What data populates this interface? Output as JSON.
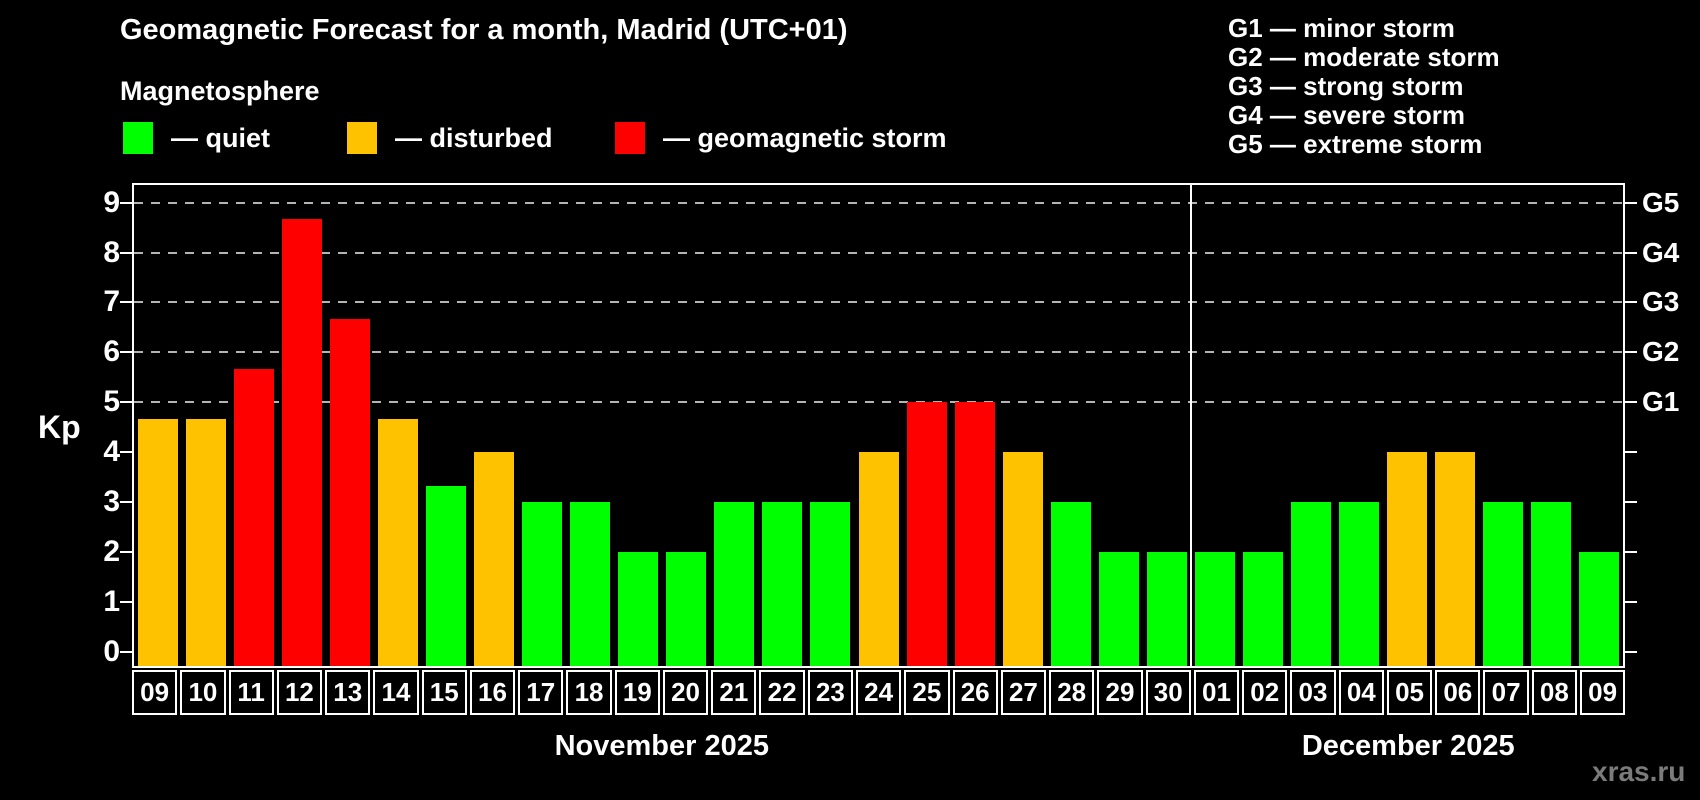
{
  "title": "Geomagnetic Forecast for a month, Madrid (UTC+01)",
  "subtitle": "Magnetosphere",
  "legend": {
    "items": [
      {
        "key": "quiet",
        "label": "— quiet"
      },
      {
        "key": "disturbed",
        "label": "— disturbed"
      },
      {
        "key": "storm",
        "label": "— geomagnetic storm"
      }
    ]
  },
  "g_scale_legend": [
    {
      "label": "G1 — minor storm"
    },
    {
      "label": "G2 — moderate storm"
    },
    {
      "label": "G3 — strong storm"
    },
    {
      "label": "G4 — severe storm"
    },
    {
      "label": "G5 — extreme storm"
    }
  ],
  "watermark": "xras.ru",
  "chart_data": {
    "type": "bar",
    "title": "Geomagnetic Forecast for a month, Madrid (UTC+01)",
    "ylabel": "Kp",
    "ylim": [
      0,
      9.4
    ],
    "grid": "dashed horizontal lines at Kp 5-9 only",
    "legend_position": "top-left",
    "yticks": [
      "0",
      "1",
      "2",
      "3",
      "4",
      "5",
      "6",
      "7",
      "8",
      "9"
    ],
    "g_levels": [
      {
        "kp": 5,
        "label": "G1"
      },
      {
        "kp": 6,
        "label": "G2"
      },
      {
        "kp": 7,
        "label": "G3"
      },
      {
        "kp": 8,
        "label": "G4"
      },
      {
        "kp": 9,
        "label": "G5"
      }
    ],
    "colors": {
      "quiet": "#00ff00",
      "disturbed": "#ffc200",
      "storm": "#ff0000"
    },
    "months": [
      {
        "label": "November 2025",
        "days": 22
      },
      {
        "label": "December 2025",
        "days": 9
      }
    ],
    "bars": [
      {
        "day": "09",
        "value": 4.67,
        "status": "disturbed"
      },
      {
        "day": "10",
        "value": 4.67,
        "status": "disturbed"
      },
      {
        "day": "11",
        "value": 5.67,
        "status": "storm"
      },
      {
        "day": "12",
        "value": 8.67,
        "status": "storm"
      },
      {
        "day": "13",
        "value": 6.67,
        "status": "storm"
      },
      {
        "day": "14",
        "value": 4.67,
        "status": "disturbed"
      },
      {
        "day": "15",
        "value": 3.33,
        "status": "quiet"
      },
      {
        "day": "16",
        "value": 4,
        "status": "disturbed"
      },
      {
        "day": "17",
        "value": 3,
        "status": "quiet"
      },
      {
        "day": "18",
        "value": 3,
        "status": "quiet"
      },
      {
        "day": "19",
        "value": 2,
        "status": "quiet"
      },
      {
        "day": "20",
        "value": 2,
        "status": "quiet"
      },
      {
        "day": "21",
        "value": 3,
        "status": "quiet"
      },
      {
        "day": "22",
        "value": 3,
        "status": "quiet"
      },
      {
        "day": "23",
        "value": 3,
        "status": "quiet"
      },
      {
        "day": "24",
        "value": 4,
        "status": "disturbed"
      },
      {
        "day": "25",
        "value": 5,
        "status": "storm"
      },
      {
        "day": "26",
        "value": 5,
        "status": "storm"
      },
      {
        "day": "27",
        "value": 4,
        "status": "disturbed"
      },
      {
        "day": "28",
        "value": 3,
        "status": "quiet"
      },
      {
        "day": "29",
        "value": 2,
        "status": "quiet"
      },
      {
        "day": "30",
        "value": 2,
        "status": "quiet"
      },
      {
        "day": "01",
        "value": 2,
        "status": "quiet"
      },
      {
        "day": "02",
        "value": 2,
        "status": "quiet"
      },
      {
        "day": "03",
        "value": 3,
        "status": "quiet"
      },
      {
        "day": "04",
        "value": 3,
        "status": "quiet"
      },
      {
        "day": "05",
        "value": 4,
        "status": "disturbed"
      },
      {
        "day": "06",
        "value": 4,
        "status": "disturbed"
      },
      {
        "day": "07",
        "value": 3,
        "status": "quiet"
      },
      {
        "day": "08",
        "value": 3,
        "status": "quiet"
      },
      {
        "day": "09",
        "value": 2,
        "status": "quiet"
      }
    ]
  }
}
